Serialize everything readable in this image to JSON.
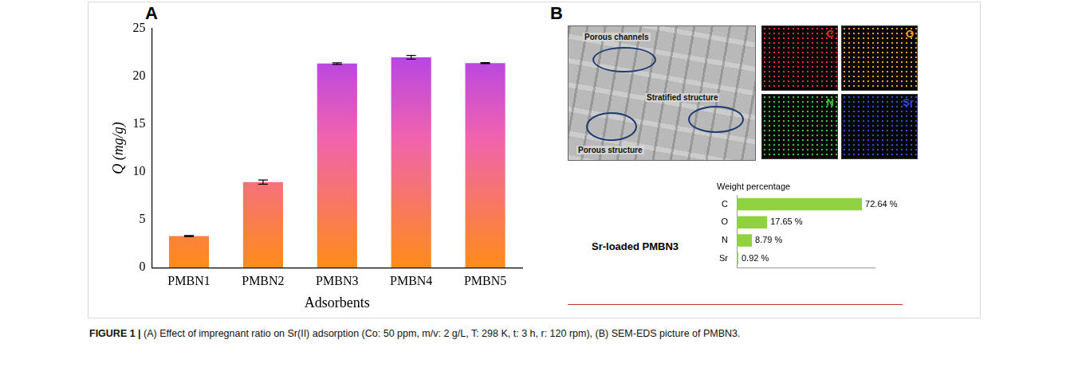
{
  "chart_data": [
    {
      "type": "bar",
      "categories": [
        "PMBN1",
        "PMBN2",
        "PMBN3",
        "PMBN4",
        "PMBN5"
      ],
      "values": [
        3.3,
        8.95,
        21.35,
        22.0,
        21.4
      ],
      "errors": [
        0.05,
        0.22,
        0.08,
        0.2,
        0.05
      ],
      "color": "#a23cf5",
      "x_label": "Adsorbents",
      "y_label": "Q (mg/g)",
      "ylim": [
        0,
        25
      ],
      "yticks": [
        0,
        5,
        10,
        15,
        20,
        25
      ],
      "grid": false
    },
    {
      "type": "bar",
      "orientation": "horizontal",
      "title": "Weight percentage",
      "categories": [
        "C",
        "O",
        "N",
        "Sr"
      ],
      "values": [
        72.64,
        17.65,
        8.79,
        0.92
      ],
      "value_labels": [
        "72.64 %",
        "17.65 %",
        "8.79 %",
        "0.92 %"
      ],
      "data_labels": true,
      "color": "#8fd13f",
      "xlim": [
        0,
        80
      ],
      "tick_labels": "y",
      "grid": false
    }
  ],
  "figure": {
    "panel_a": {
      "letter": "A"
    },
    "panel_b": {
      "letter": "B",
      "sem_labels": [
        "Porous channels",
        "Stratified structure",
        "Porous structure"
      ],
      "maps": [
        {
          "label": "C",
          "color": "#e8302a"
        },
        {
          "label": "O",
          "color": "#f0a020"
        },
        {
          "label": "N",
          "color": "#35c43a"
        },
        {
          "label": "Sr",
          "color": "#2f4fd8"
        }
      ],
      "spectrum_label": "Sr-loaded PMBN3"
    },
    "caption": {
      "lead": "FIGURE 1 | ",
      "text": "(A) Effect of impregnant ratio on Sr(II) adsorption (Co: 50 ppm, m/v: 2 g/L, T: 298 K, t: 3 h, r: 120 rpm), (B) SEM-EDS picture of PMBN3."
    }
  }
}
